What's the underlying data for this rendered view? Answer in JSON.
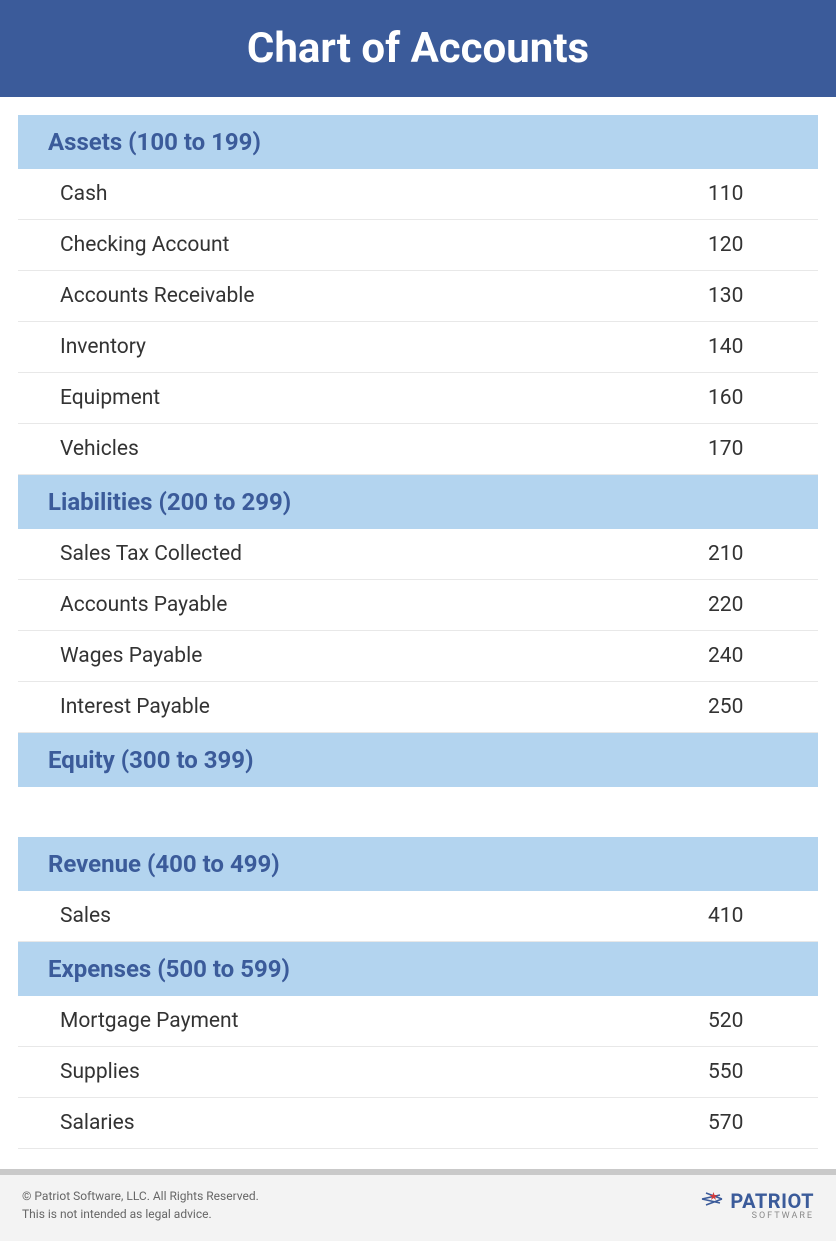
{
  "title": "Chart of Accounts",
  "colors": {
    "title_bg": "#3b5b9a",
    "title_text": "#ffffff",
    "section_bg": "#b3d4ef",
    "section_text": "#3b5b9a",
    "row_text": "#333333",
    "row_border": "#e8e8e8",
    "footer_border": "#c9c9c9",
    "footer_bg": "#f3f3f3",
    "footer_text": "#666666"
  },
  "sections": [
    {
      "header": "Assets (100 to 199)",
      "rows": [
        {
          "name": "Cash",
          "code": "110"
        },
        {
          "name": "Checking Account",
          "code": "120"
        },
        {
          "name": "Accounts Receivable",
          "code": "130"
        },
        {
          "name": "Inventory",
          "code": "140"
        },
        {
          "name": "Equipment",
          "code": "160"
        },
        {
          "name": "Vehicles",
          "code": "170"
        }
      ]
    },
    {
      "header": "Liabilities (200 to 299)",
      "rows": [
        {
          "name": "Sales Tax Collected",
          "code": "210"
        },
        {
          "name": "Accounts Payable",
          "code": "220"
        },
        {
          "name": "Wages Payable",
          "code": "240"
        },
        {
          "name": "Interest Payable",
          "code": "250"
        }
      ]
    },
    {
      "header": "Equity (300 to 399)",
      "rows": [],
      "spacer_after": true
    },
    {
      "header": "Revenue (400 to 499)",
      "rows": [
        {
          "name": "Sales",
          "code": "410"
        }
      ]
    },
    {
      "header": "Expenses (500 to 599)",
      "rows": [
        {
          "name": "Mortgage Payment",
          "code": "520"
        },
        {
          "name": "Supplies",
          "code": "550"
        },
        {
          "name": "Salaries",
          "code": "570"
        }
      ]
    }
  ],
  "footer": {
    "copyright": "© Patriot Software, LLC. All Rights Reserved.",
    "disclaimer": "This is not intended as legal advice.",
    "logo_text": "PATRIOT",
    "logo_sub": "SOFTWARE"
  }
}
